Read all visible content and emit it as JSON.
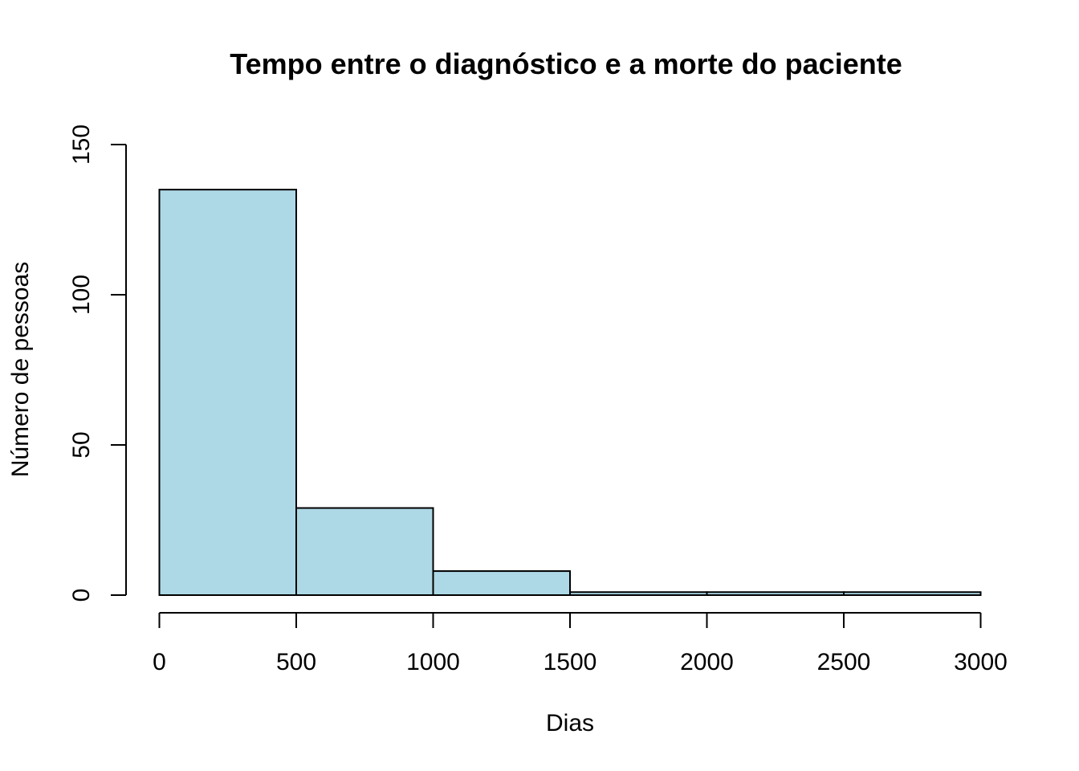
{
  "chart_data": {
    "type": "bar",
    "title": "Tempo entre o diagnóstico e a morte do paciente",
    "xlabel": "Dias",
    "ylabel": "Número de pessoas",
    "bins": [
      {
        "start": 0,
        "end": 500,
        "count": 135
      },
      {
        "start": 500,
        "end": 1000,
        "count": 29
      },
      {
        "start": 1000,
        "end": 1500,
        "count": 8
      },
      {
        "start": 1500,
        "end": 2000,
        "count": 1
      },
      {
        "start": 2000,
        "end": 2500,
        "count": 1
      },
      {
        "start": 2500,
        "end": 3000,
        "count": 1
      }
    ],
    "xlim": [
      0,
      3000
    ],
    "ylim": [
      0,
      150
    ],
    "x_ticks": [
      0,
      500,
      1000,
      1500,
      2000,
      2500,
      3000
    ],
    "y_ticks": [
      0,
      50,
      100,
      150
    ],
    "bar_color": "#add8e6",
    "grid": false,
    "legend": "none"
  }
}
